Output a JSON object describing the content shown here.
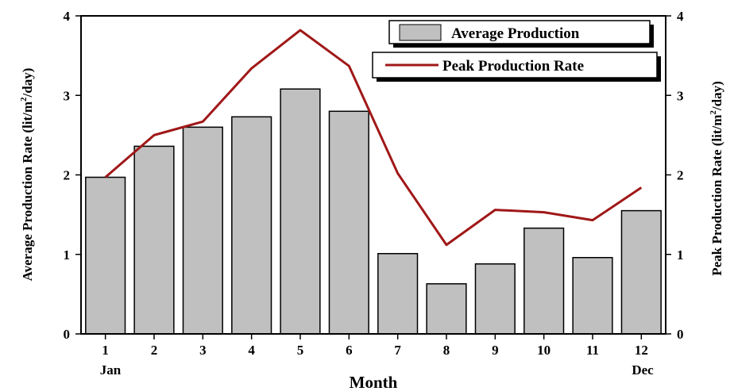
{
  "chart_data": {
    "type": "bar",
    "xlabel": "Month",
    "categories": [
      "1",
      "2",
      "3",
      "4",
      "5",
      "6",
      "7",
      "8",
      "9",
      "10",
      "11",
      "12"
    ],
    "extra_x_labels": {
      "first": "Jan",
      "last": "Dec"
    },
    "y_left": {
      "label_prefix": "Average Production Rate (lit/m",
      "label_sup": "2",
      "label_suffix": "/day)",
      "ylim": [
        0,
        4
      ],
      "ticks": [
        "0",
        "1",
        "2",
        "3",
        "4"
      ]
    },
    "y_right": {
      "label_prefix": "Peak Production Rate (lit/m",
      "label_sup": "2",
      "label_suffix": "/day)",
      "ylim": [
        0,
        4
      ],
      "ticks": [
        "0",
        "1",
        "2",
        "3",
        "4"
      ]
    },
    "series": [
      {
        "name": "Average Production",
        "type": "bar",
        "color": "#c0c0c0",
        "values": [
          1.97,
          2.36,
          2.6,
          2.73,
          3.08,
          2.8,
          1.01,
          0.63,
          0.88,
          1.33,
          0.96,
          1.55
        ]
      },
      {
        "name": "Peak Production Rate",
        "type": "line",
        "color": "#a01818",
        "values": [
          1.97,
          2.5,
          2.67,
          3.34,
          3.82,
          3.37,
          2.02,
          1.12,
          1.56,
          1.53,
          1.43,
          1.84
        ]
      }
    ],
    "grid": false,
    "legend_position": "top-right"
  }
}
